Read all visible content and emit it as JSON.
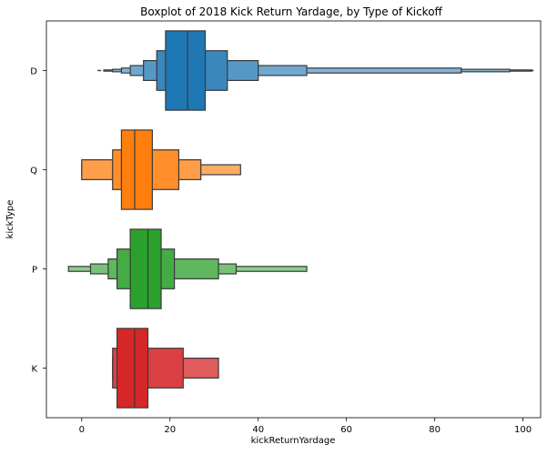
{
  "chart_data": {
    "type": "boxen",
    "title": "Boxplot of 2018 Kick Return Yardage, by Type of Kickoff",
    "xlabel": "kickReturnYardage",
    "ylabel": "kickType",
    "xlim": [
      -8,
      104
    ],
    "x_ticks": [
      0,
      20,
      40,
      60,
      80,
      100
    ],
    "categories": [
      "D",
      "Q",
      "P",
      "K"
    ],
    "grid": false,
    "series": [
      {
        "category": "D",
        "color": "#1f77b4",
        "median": 24,
        "levels": [
          [
            19,
            28
          ],
          [
            17,
            33
          ],
          [
            14,
            40
          ],
          [
            11,
            51
          ],
          [
            9,
            86
          ],
          [
            7,
            97
          ],
          [
            5,
            102
          ]
        ],
        "outliers": [
          4,
          102
        ]
      },
      {
        "category": "Q",
        "color": "#ff7f0e",
        "median": 12,
        "levels": [
          [
            9,
            16
          ],
          [
            7,
            22
          ],
          [
            0,
            27
          ],
          [
            0,
            36
          ]
        ],
        "outliers": []
      },
      {
        "category": "P",
        "color": "#2ca02c",
        "median": 15,
        "levels": [
          [
            11,
            18
          ],
          [
            8,
            21
          ],
          [
            6,
            31
          ],
          [
            2,
            35
          ],
          [
            -3,
            51
          ]
        ],
        "outliers": []
      },
      {
        "category": "K",
        "color": "#d62728",
        "median": 12,
        "levels": [
          [
            8,
            15
          ],
          [
            7,
            23
          ],
          [
            7,
            31
          ]
        ],
        "outliers": []
      }
    ]
  }
}
